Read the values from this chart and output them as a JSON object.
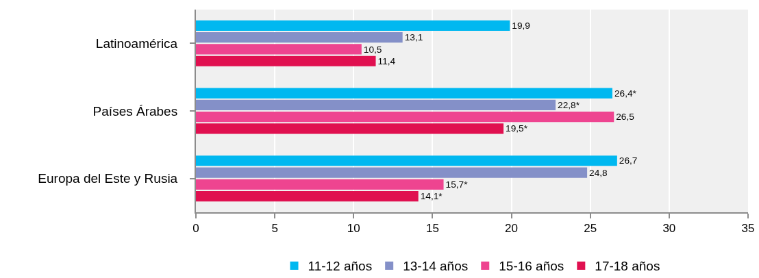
{
  "chart_data": {
    "type": "bar",
    "orientation": "horizontal",
    "categories": [
      "Latinoamérica",
      "Países Árabes",
      "Europa del Este y Rusia"
    ],
    "series": [
      {
        "name": "11-12 años",
        "color": "#00b8f0",
        "values": [
          19.9,
          26.4,
          26.7
        ],
        "value_labels": [
          "19,9",
          "26,4*",
          "26,7"
        ]
      },
      {
        "name": "13-14 años",
        "color": "#8490c8",
        "values": [
          13.1,
          22.8,
          24.8
        ],
        "value_labels": [
          "13,1",
          "22,8*",
          "24,8"
        ]
      },
      {
        "name": "15-16 años",
        "color": "#ee4490",
        "values": [
          10.5,
          26.5,
          15.7
        ],
        "value_labels": [
          "10,5",
          "26,5",
          "15,7*"
        ]
      },
      {
        "name": "17-18 años",
        "color": "#e01050",
        "values": [
          11.4,
          19.5,
          14.1
        ],
        "value_labels": [
          "11,4",
          "19,5*",
          "14,1*"
        ]
      }
    ],
    "xlim": [
      0,
      35
    ],
    "xticks": [
      0,
      5,
      10,
      15,
      20,
      25,
      30,
      35
    ],
    "grid": "x",
    "legend": "bottom"
  }
}
